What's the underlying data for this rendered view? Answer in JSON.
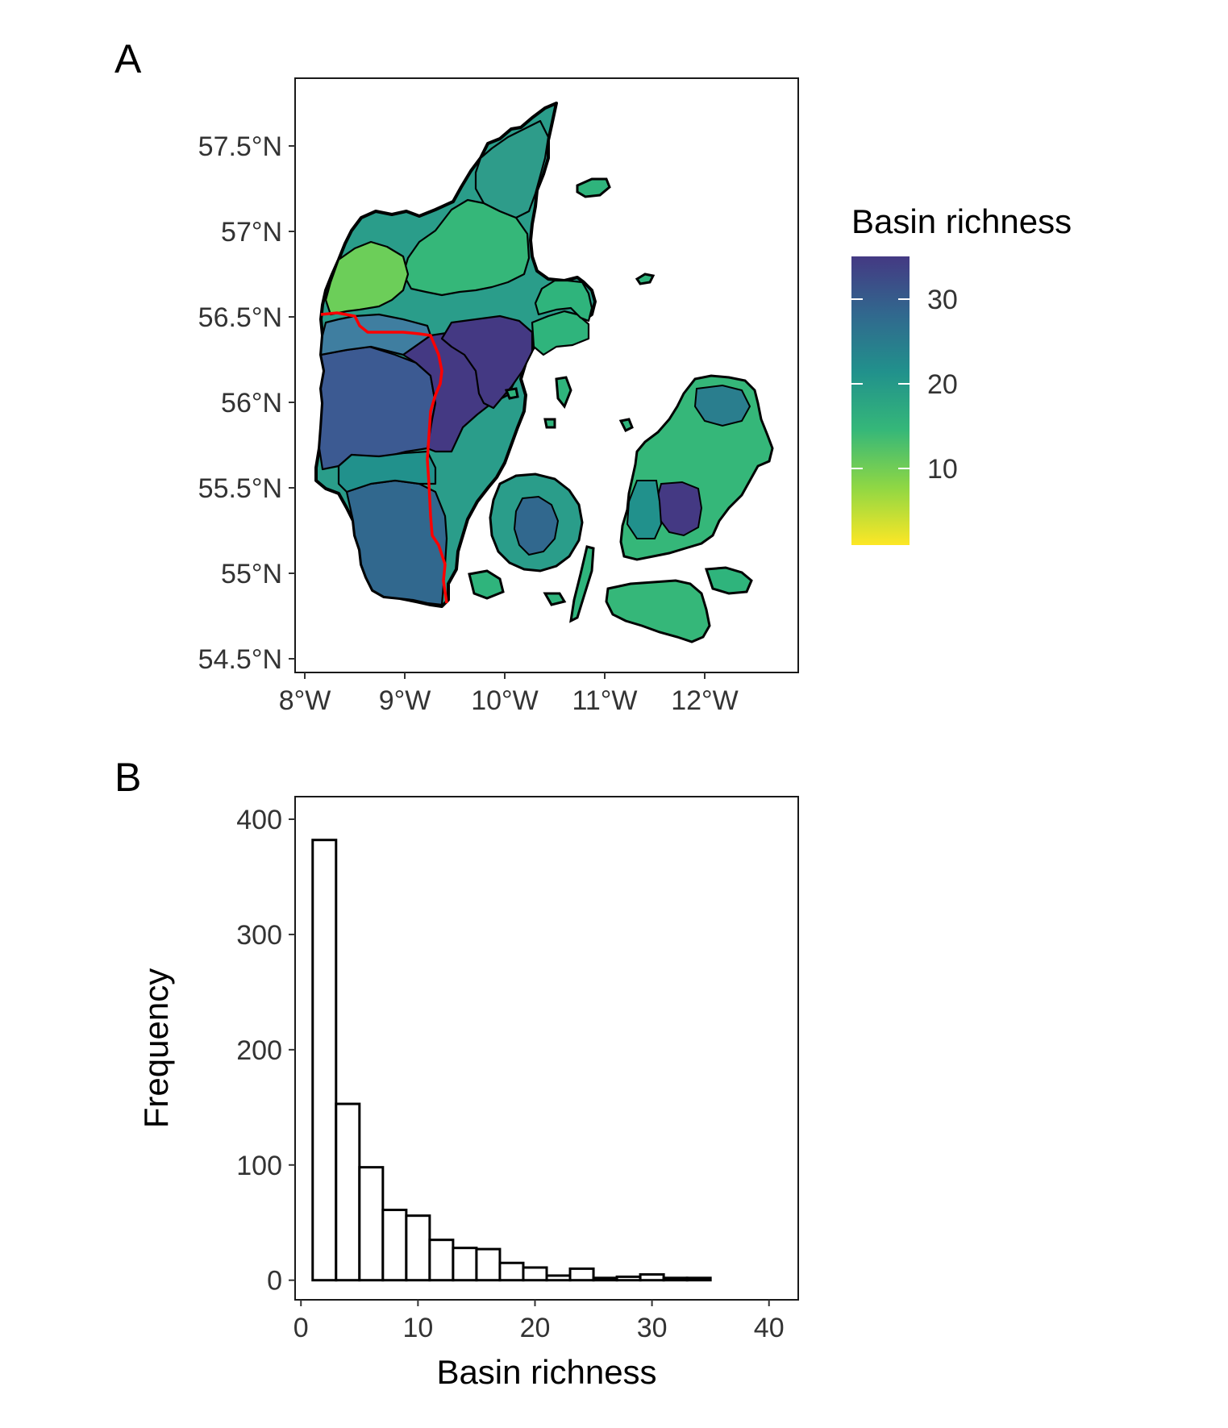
{
  "panel_a_label": "A",
  "panel_b_label": "B",
  "legend": {
    "title": "Basin richness",
    "ticks": [
      "30",
      "20",
      "10"
    ],
    "range": [
      1,
      35
    ],
    "colors": [
      "#fde725",
      "#8fd744",
      "#35b779",
      "#21918c",
      "#31688e",
      "#443983"
    ]
  },
  "map": {
    "lat_ticks": [
      "57.5°N",
      "57°N",
      "56.5°N",
      "56°N",
      "55.5°N",
      "55°N",
      "54.5°N"
    ],
    "lon_ticks": [
      "8°W",
      "9°W",
      "10°W",
      "11°W",
      "12°W"
    ],
    "divide_line_color": "#ff0000"
  },
  "chart_data": [
    {
      "type": "map",
      "panel": "A",
      "ylim": [
        54.5,
        57.75
      ],
      "xlim": [
        8,
        12.5
      ],
      "ylabels": [
        "57.5°N",
        "57°N",
        "56.5°N",
        "56°N",
        "55.5°N",
        "55°N",
        "54.5°N"
      ],
      "xlabels": [
        "8°W",
        "9°W",
        "10°W",
        "11°W",
        "12°W"
      ],
      "legend_title": "Basin richness"
    },
    {
      "type": "bar",
      "panel": "B",
      "xlabel": "Basin richness",
      "ylabel": "Frequency",
      "xlim": [
        0,
        42
      ],
      "ylim": [
        0,
        400
      ],
      "xticks": [
        0,
        10,
        20,
        30,
        40
      ],
      "yticks": [
        0,
        100,
        200,
        300,
        400
      ],
      "bin_width": 2,
      "bins": [
        {
          "x0": 1,
          "x1": 3,
          "count": 382
        },
        {
          "x0": 3,
          "x1": 5,
          "count": 153
        },
        {
          "x0": 5,
          "x1": 7,
          "count": 98
        },
        {
          "x0": 7,
          "x1": 9,
          "count": 61
        },
        {
          "x0": 9,
          "x1": 11,
          "count": 56
        },
        {
          "x0": 11,
          "x1": 13,
          "count": 35
        },
        {
          "x0": 13,
          "x1": 15,
          "count": 28
        },
        {
          "x0": 15,
          "x1": 17,
          "count": 27
        },
        {
          "x0": 17,
          "x1": 19,
          "count": 15
        },
        {
          "x0": 19,
          "x1": 21,
          "count": 11
        },
        {
          "x0": 21,
          "x1": 23,
          "count": 4
        },
        {
          "x0": 23,
          "x1": 25,
          "count": 10
        },
        {
          "x0": 25,
          "x1": 27,
          "count": 2
        },
        {
          "x0": 27,
          "x1": 29,
          "count": 3
        },
        {
          "x0": 29,
          "x1": 31,
          "count": 5
        },
        {
          "x0": 31,
          "x1": 33,
          "count": 2
        },
        {
          "x0": 33,
          "x1": 35,
          "count": 2
        },
        {
          "x0": 35,
          "x1": 37,
          "count": 0
        },
        {
          "x0": 37,
          "x1": 39,
          "count": 0
        },
        {
          "x0": 39,
          "x1": 41,
          "count": 0
        }
      ]
    }
  ]
}
